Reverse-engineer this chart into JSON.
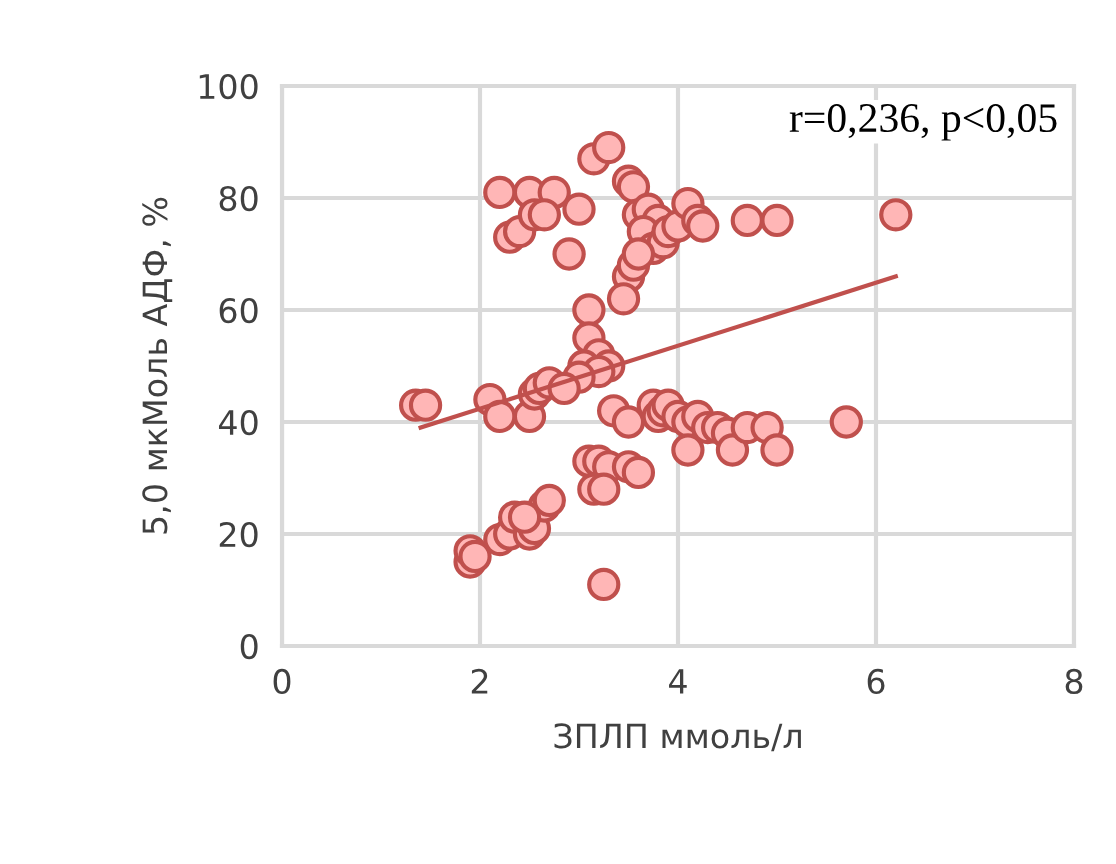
{
  "chart_data": {
    "type": "scatter",
    "xlabel": "ЗПЛП ммоль/л",
    "ylabel": "5,0 мкМоль АДФ, %",
    "annotations": [
      "r=0,236, p<0,05"
    ],
    "xlim": [
      0,
      8
    ],
    "xticks": [
      0,
      2,
      4,
      6,
      8
    ],
    "ylim": [
      0,
      100
    ],
    "yticks": [
      0,
      20,
      40,
      60,
      80,
      100
    ],
    "grid": true,
    "marker": "circle",
    "series": [
      {
        "color": "#ffb6b6",
        "x": [
          2.2,
          2.5,
          2.75,
          3.0,
          2.3,
          2.4,
          2.55,
          2.65,
          2.9,
          3.15,
          3.3,
          3.5,
          3.55,
          3.6,
          3.7,
          3.8,
          3.65,
          3.75,
          3.85,
          3.9,
          4.0,
          4.1,
          4.2,
          4.25,
          4.7,
          5.0,
          6.2,
          3.5,
          3.55,
          3.6,
          3.45,
          3.1,
          3.1,
          3.2,
          3.05,
          3.3,
          3.2,
          2.1,
          2.2,
          2.5,
          2.55,
          2.6,
          2.7,
          3.0,
          2.85,
          1.35,
          1.45,
          3.35,
          3.5,
          3.75,
          3.8,
          3.85,
          3.9,
          4.0,
          4.1,
          4.2,
          4.1,
          4.3,
          4.4,
          4.5,
          4.55,
          4.7,
          4.9,
          5.0,
          5.7,
          3.1,
          3.2,
          3.3,
          3.5,
          3.15,
          3.25,
          1.9,
          1.9,
          1.95,
          2.2,
          2.3,
          2.35,
          2.5,
          2.55,
          2.65,
          2.7,
          2.45,
          3.25,
          3.6
        ],
        "values": [
          81,
          81,
          81,
          78,
          73,
          74,
          77,
          77,
          70,
          87,
          89,
          83,
          82,
          77,
          78,
          76,
          74,
          71,
          72,
          74,
          75,
          79,
          76,
          75,
          76,
          76,
          77,
          66,
          68,
          70,
          62,
          60,
          55,
          52,
          50,
          50,
          49,
          44,
          41,
          41,
          45,
          46,
          47,
          48,
          46,
          43,
          43,
          42,
          40,
          43,
          41,
          42,
          43,
          41,
          40,
          41,
          35,
          39,
          39,
          38,
          35,
          39,
          39,
          35,
          40,
          33,
          33,
          32,
          32,
          28,
          28,
          15,
          17,
          16,
          19,
          20,
          23,
          20,
          21,
          25,
          26,
          23,
          11,
          31
        ]
      },
      {
        "type": "line",
        "color": "#c0504d",
        "marker": "none",
        "x": [
          1.4,
          6.2
        ],
        "values": [
          39,
          66
        ]
      }
    ]
  }
}
